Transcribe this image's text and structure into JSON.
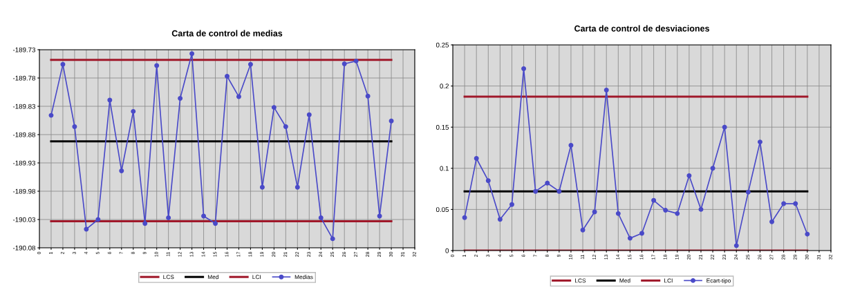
{
  "chart_data": [
    {
      "type": "line",
      "title": "Carta de control de medias",
      "xlim": [
        0,
        32
      ],
      "xticks": [
        0,
        1,
        2,
        3,
        4,
        5,
        6,
        7,
        8,
        9,
        10,
        11,
        12,
        13,
        14,
        15,
        16,
        17,
        18,
        19,
        20,
        21,
        22,
        23,
        24,
        25,
        26,
        27,
        28,
        29,
        30,
        31,
        32
      ],
      "ylim": [
        -190.08,
        -189.73
      ],
      "yticks": [
        -190.08,
        -190.03,
        -189.98,
        -189.93,
        -189.88,
        -189.83,
        -189.78,
        -189.73
      ],
      "grid": true,
      "legend": "bottom",
      "series": [
        {
          "name": "LCS",
          "color": "#a0182a",
          "x": [
            1,
            30
          ],
          "values": [
            -189.748,
            -189.748
          ],
          "marker": "none"
        },
        {
          "name": "Med",
          "color": "#000000",
          "x": [
            1,
            30
          ],
          "values": [
            -189.892,
            -189.892
          ],
          "marker": "none"
        },
        {
          "name": "LCI",
          "color": "#a0182a",
          "x": [
            1,
            30
          ],
          "values": [
            -190.033,
            -190.033
          ],
          "marker": "none"
        },
        {
          "name": "Medias",
          "color": "#4a4ac8",
          "marker": "circle",
          "x": [
            1,
            2,
            3,
            4,
            5,
            6,
            7,
            8,
            9,
            10,
            11,
            12,
            13,
            14,
            15,
            16,
            17,
            18,
            19,
            20,
            21,
            22,
            23,
            24,
            25,
            26,
            27,
            28,
            29,
            30
          ],
          "values": [
            -189.846,
            -189.756,
            -189.866,
            -190.047,
            -190.03,
            -189.819,
            -189.944,
            -189.839,
            -190.037,
            -189.758,
            -190.027,
            -189.816,
            -189.737,
            -190.024,
            -190.037,
            -189.777,
            -189.813,
            -189.756,
            -189.973,
            -189.832,
            -189.866,
            -189.973,
            -189.845,
            -190.027,
            -190.064,
            -189.755,
            -189.75,
            -189.812,
            -190.024,
            -189.856
          ]
        }
      ]
    },
    {
      "type": "line",
      "title": "Carta de control de desviaciones",
      "xlim": [
        0,
        32
      ],
      "xticks": [
        0,
        1,
        2,
        3,
        4,
        5,
        6,
        7,
        8,
        9,
        10,
        11,
        12,
        13,
        14,
        15,
        16,
        17,
        18,
        19,
        20,
        21,
        22,
        23,
        24,
        25,
        26,
        27,
        28,
        29,
        30,
        31,
        32
      ],
      "ylim": [
        0,
        0.25
      ],
      "yticks": [
        0,
        0.05,
        0.1,
        0.15,
        0.2,
        0.25
      ],
      "grid": true,
      "legend": "bottom",
      "series": [
        {
          "name": "LCS",
          "color": "#a0182a",
          "x": [
            1,
            30
          ],
          "values": [
            0.187,
            0.187
          ],
          "marker": "none"
        },
        {
          "name": "Med",
          "color": "#000000",
          "x": [
            1,
            30
          ],
          "values": [
            0.072,
            0.072
          ],
          "marker": "none"
        },
        {
          "name": "LCI",
          "color": "#a0182a",
          "x": [
            1,
            30
          ],
          "values": [
            0,
            0
          ],
          "marker": "none"
        },
        {
          "name": "Ecart-tipo",
          "color": "#4a4ac8",
          "marker": "circle",
          "x": [
            1,
            2,
            3,
            4,
            5,
            6,
            7,
            8,
            9,
            10,
            11,
            12,
            13,
            14,
            15,
            16,
            17,
            18,
            19,
            20,
            21,
            22,
            23,
            24,
            25,
            26,
            27,
            28,
            29,
            30
          ],
          "values": [
            0.04,
            0.112,
            0.085,
            0.038,
            0.056,
            0.221,
            0.072,
            0.082,
            0.072,
            0.128,
            0.025,
            0.047,
            0.195,
            0.045,
            0.015,
            0.021,
            0.061,
            0.049,
            0.045,
            0.091,
            0.05,
            0.1,
            0.15,
            0.006,
            0.071,
            0.132,
            0.035,
            0.057,
            0.057,
            0.02
          ]
        }
      ]
    }
  ]
}
